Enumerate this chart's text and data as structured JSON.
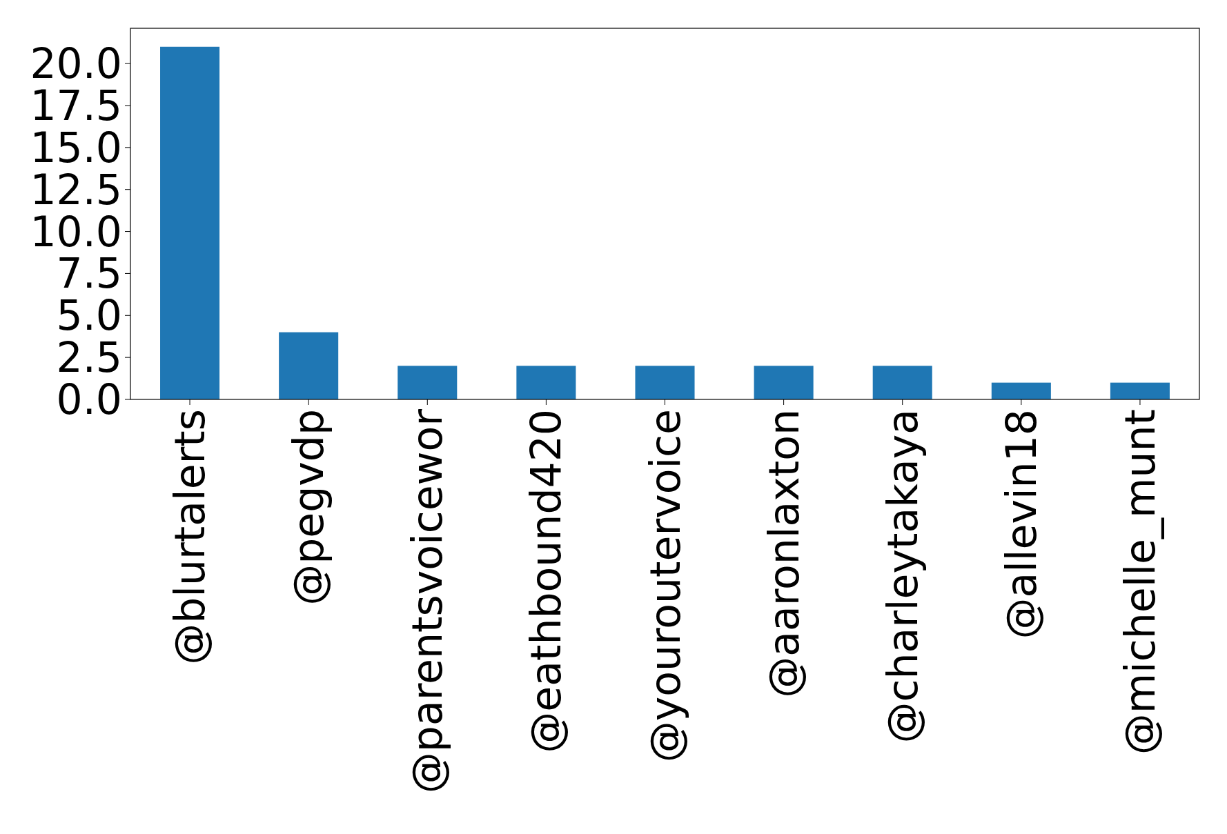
{
  "chart_data": {
    "type": "bar",
    "categories": [
      "@blurtalerts",
      "@pegvdp",
      "@parentsvoicewor",
      "@eathbound420",
      "@youroutervoice",
      "@aaronlaxton",
      "@charleytakaya",
      "@allevin18",
      "@michelle_munt"
    ],
    "values": [
      21,
      4,
      2,
      2,
      2,
      2,
      2,
      1,
      1
    ],
    "color": "#1f77b4",
    "ylim": [
      0,
      22.1
    ],
    "yticks": [
      {
        "value": 0,
        "label": "0.0"
      },
      {
        "value": 2.5,
        "label": "2.5"
      },
      {
        "value": 5,
        "label": "5.0"
      },
      {
        "value": 7.5,
        "label": "7.5"
      },
      {
        "value": 10,
        "label": "10.0"
      },
      {
        "value": 12.5,
        "label": "12.5"
      },
      {
        "value": 15,
        "label": "15.0"
      },
      {
        "value": 17.5,
        "label": "17.5"
      },
      {
        "value": 20,
        "label": "20.0"
      }
    ],
    "grid": false
  }
}
